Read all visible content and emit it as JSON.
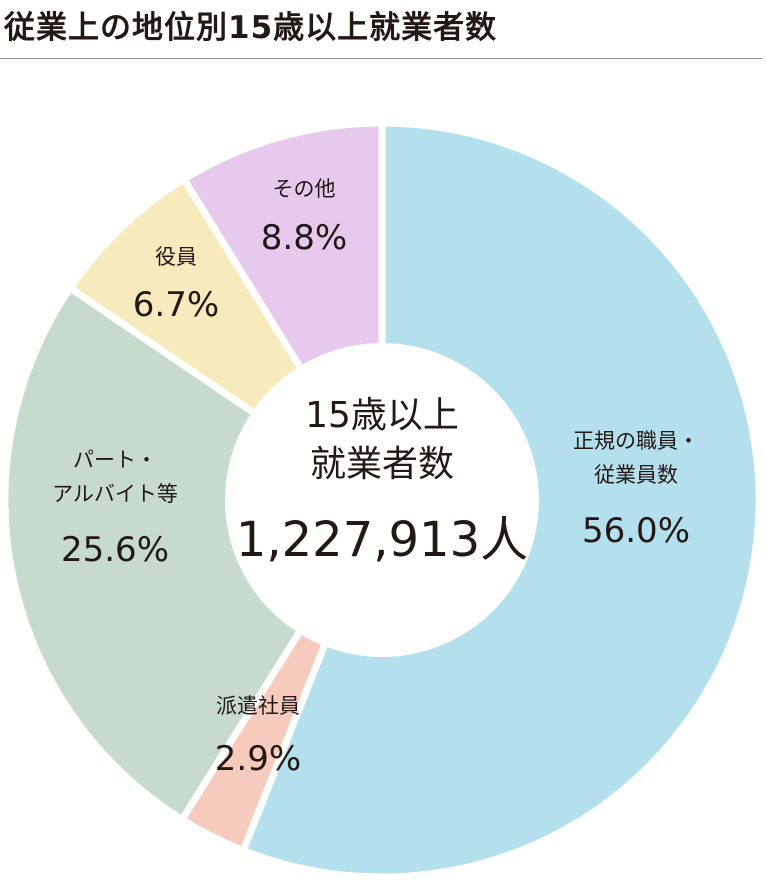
{
  "title": "従業上の地位別15歳以上就業者数",
  "center": {
    "line1": "15歳以上",
    "line2": "就業者数",
    "total": "1,227,913人"
  },
  "chart_data": {
    "type": "pie",
    "title": "従業上の地位別15歳以上就業者数",
    "total": 1227913,
    "unit": "人",
    "slices": [
      {
        "label_lines": [
          "正規の職員・",
          "従業員数"
        ],
        "label": "正規の職員・従業員数",
        "value": 56.0,
        "pct_text": "56.0%",
        "color": "#b3e0ec"
      },
      {
        "label_lines": [
          "派遣社員"
        ],
        "label": "派遣社員",
        "value": 2.9,
        "pct_text": "2.9%",
        "color": "#f6cbbd"
      },
      {
        "label_lines": [
          "パート・",
          "アルバイト等"
        ],
        "label": "パート・アルバイト等",
        "value": 25.6,
        "pct_text": "25.6%",
        "color": "#c6dbce"
      },
      {
        "label_lines": [
          "役員"
        ],
        "label": "役員",
        "value": 6.7,
        "pct_text": "6.7%",
        "color": "#f7ebbe"
      },
      {
        "label_lines": [
          "その他"
        ],
        "label": "その他",
        "value": 8.8,
        "pct_text": "8.8%",
        "color": "#e6c9ec"
      }
    ]
  }
}
